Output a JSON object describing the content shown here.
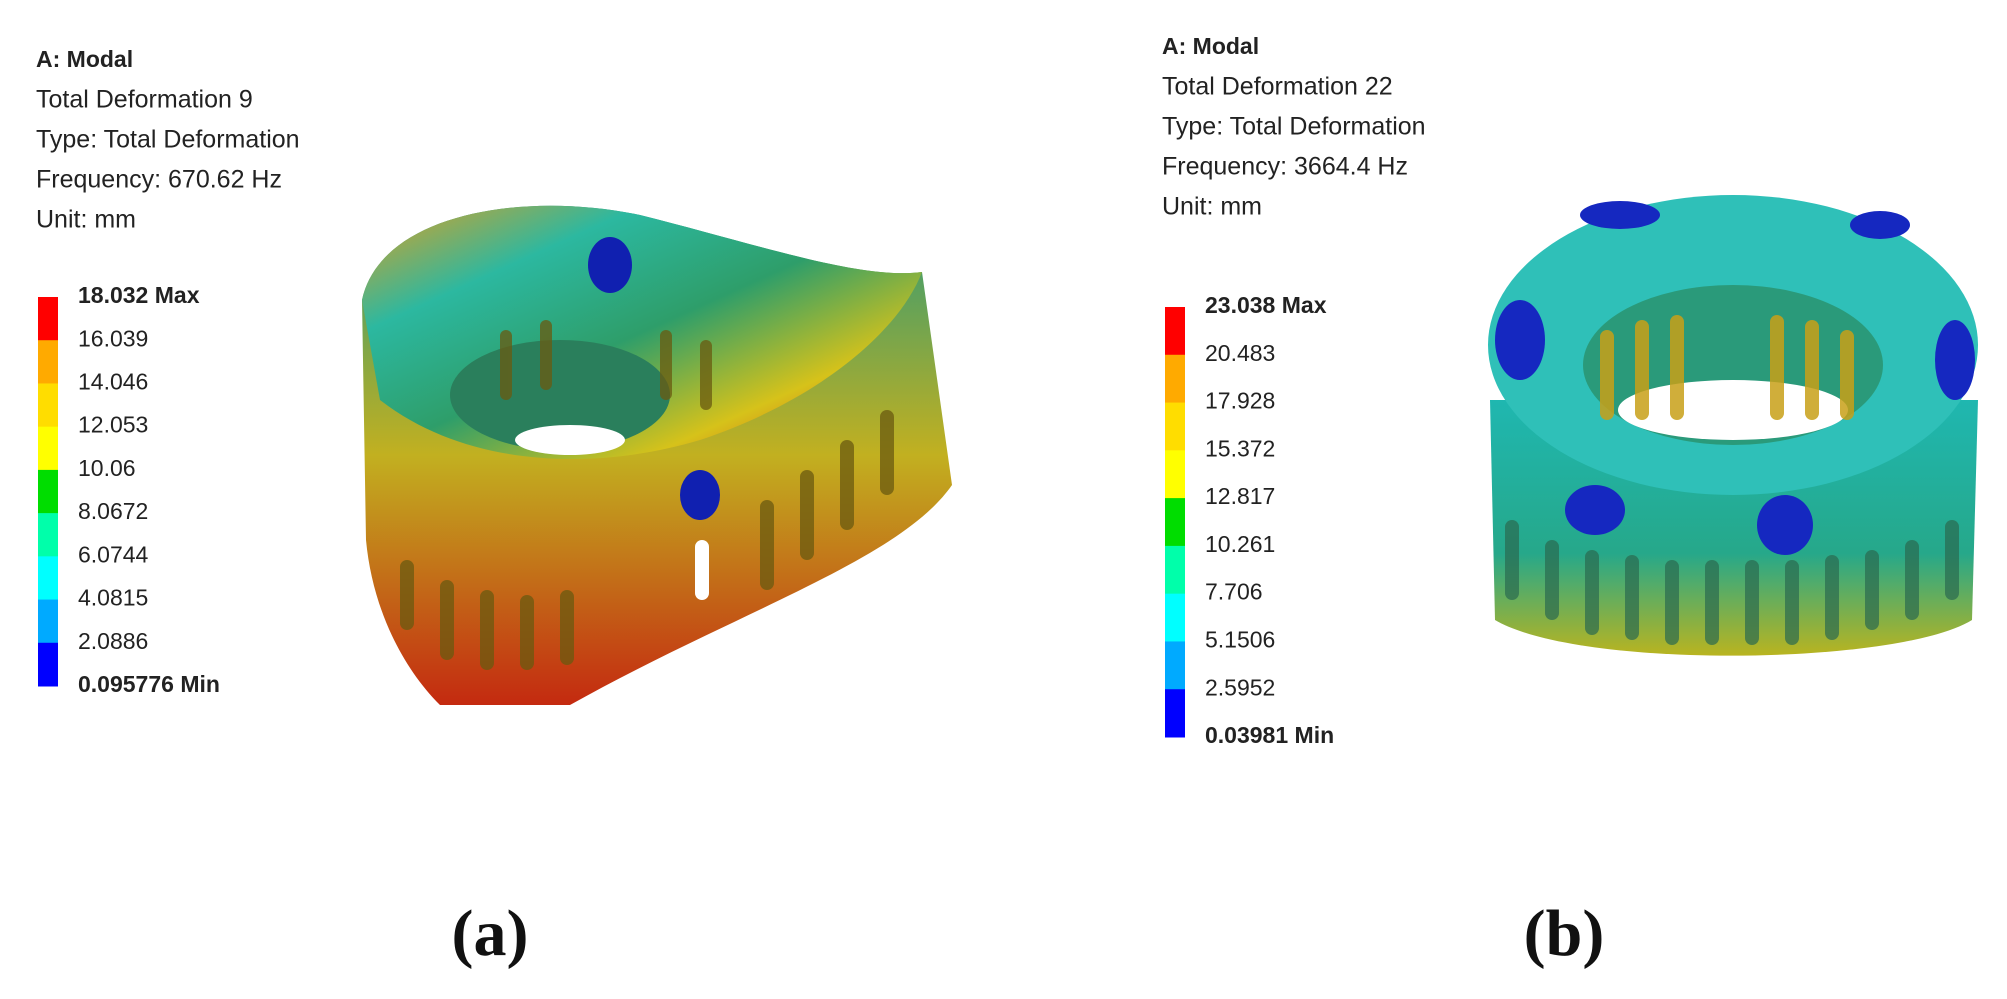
{
  "panels": [
    {
      "header": [
        "A: Modal",
        "Total Deformation 9",
        "Type: Total Deformation",
        "Frequency: 670.62 Hz",
        "Unit: mm"
      ],
      "legend": [
        "18.032 Max",
        "16.039",
        "14.046",
        "12.053",
        "10.06",
        "8.0672",
        "6.0744",
        "4.0815",
        "2.0886",
        "0.095776 Min"
      ],
      "caption": "(a)"
    },
    {
      "header": [
        "A: Modal",
        "Total Deformation 22",
        "Type: Total Deformation",
        "Frequency: 3664.4 Hz",
        "Unit: mm"
      ],
      "legend": [
        "23.038 Max",
        "20.483",
        "17.928",
        "15.372",
        "12.817",
        "10.261",
        "7.706",
        "5.1506",
        "2.5952",
        "0.03981 Min"
      ],
      "caption": "(b)"
    }
  ]
}
